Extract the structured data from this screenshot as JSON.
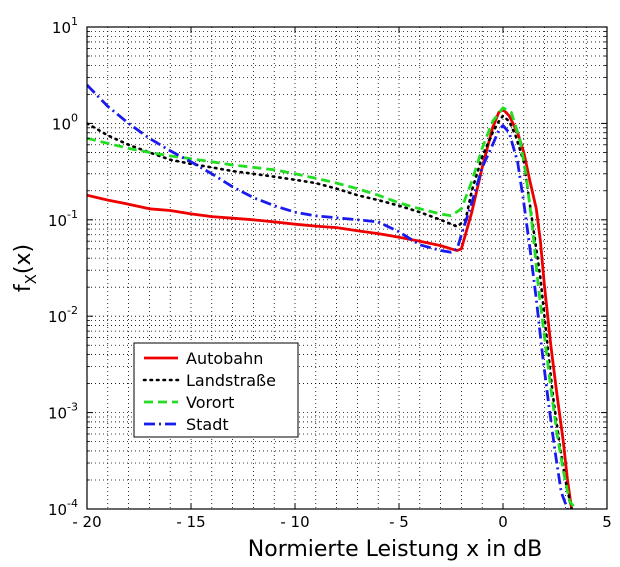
{
  "chart_data": {
    "type": "line",
    "title": "",
    "xlabel": "Normierte Leistung x in dB",
    "ylabel_main": "f",
    "ylabel_sub": "X",
    "ylabel_tail": "(x)",
    "xlim": [
      -20,
      5
    ],
    "ylim": [
      0.0001,
      10
    ],
    "yscale": "log",
    "grid": true,
    "legend_position": "lower-left",
    "x_ticks": [
      -20,
      -15,
      -10,
      -5,
      0,
      5
    ],
    "x_tick_labels": [
      "- 20",
      "- 15",
      "- 10",
      "- 5",
      "0",
      "5"
    ],
    "y_ticks": [
      {
        "value": 10,
        "base": "10",
        "exp": "1"
      },
      {
        "value": 1,
        "base": "10",
        "exp": "0"
      },
      {
        "value": 0.1,
        "base": "10",
        "exp": "-1"
      },
      {
        "value": 0.01,
        "base": "10",
        "exp": "-2"
      },
      {
        "value": 0.001,
        "base": "10",
        "exp": "-3"
      },
      {
        "value": 0.0001,
        "base": "10",
        "exp": "-4"
      }
    ],
    "series": [
      {
        "name": "Autobahn",
        "color": "#ee0000",
        "dash": "solid",
        "x": [
          -20,
          -19,
          -18,
          -17,
          -16,
          -15,
          -14,
          -13,
          -12,
          -11,
          -10,
          -9,
          -8,
          -7,
          -6,
          -5,
          -4,
          -3,
          -2.5,
          -2.2,
          -2,
          -1.5,
          -1,
          -0.5,
          -0.2,
          0,
          0.3,
          0.7,
          1.0,
          1.3,
          1.6,
          1.8,
          2.0,
          2.3,
          2.6,
          2.9,
          3.1,
          3.3
        ],
        "y": [
          0.18,
          0.16,
          0.145,
          0.13,
          0.125,
          0.115,
          0.108,
          0.104,
          0.1,
          0.095,
          0.09,
          0.086,
          0.083,
          0.077,
          0.072,
          0.066,
          0.06,
          0.054,
          0.05,
          0.048,
          0.05,
          0.12,
          0.35,
          0.9,
          1.3,
          1.4,
          1.2,
          0.8,
          0.5,
          0.25,
          0.13,
          0.06,
          0.02,
          0.005,
          0.0015,
          0.0005,
          0.0002,
          0.0001
        ]
      },
      {
        "name": "Landstraße",
        "color": "#000000",
        "dash": "dotted",
        "x": [
          -20,
          -19,
          -18,
          -17,
          -16,
          -15,
          -14,
          -13,
          -12,
          -11,
          -10,
          -9,
          -8,
          -7,
          -6,
          -5,
          -4,
          -3,
          -2.2,
          -1.8,
          -1.5,
          -1,
          -0.5,
          -0.2,
          0,
          0.3,
          0.6,
          1.0,
          1.4,
          1.8,
          2.1,
          2.4,
          2.7,
          3.0,
          3.3
        ],
        "y": [
          1.0,
          0.75,
          0.6,
          0.5,
          0.42,
          0.38,
          0.35,
          0.32,
          0.3,
          0.28,
          0.26,
          0.24,
          0.21,
          0.18,
          0.16,
          0.14,
          0.12,
          0.1,
          0.085,
          0.1,
          0.2,
          0.45,
          0.8,
          1.05,
          1.2,
          1.05,
          0.75,
          0.4,
          0.1,
          0.025,
          0.006,
          0.0015,
          0.0005,
          0.0002,
          0.0001
        ]
      },
      {
        "name": "Vorort",
        "color": "#22dd22",
        "dash": "dashed",
        "x": [
          -20,
          -19,
          -18,
          -17,
          -16,
          -15,
          -14,
          -13,
          -12,
          -11,
          -10,
          -9,
          -8,
          -7,
          -6,
          -5,
          -4,
          -3,
          -2.5,
          -2,
          -1.5,
          -1,
          -0.5,
          0,
          0.4,
          0.8,
          1.1,
          1.4,
          1.7,
          2.0,
          2.3,
          2.6,
          2.9,
          3.2,
          3.5
        ],
        "y": [
          0.7,
          0.62,
          0.55,
          0.5,
          0.46,
          0.43,
          0.4,
          0.37,
          0.35,
          0.33,
          0.3,
          0.27,
          0.24,
          0.21,
          0.18,
          0.15,
          0.13,
          0.115,
          0.11,
          0.13,
          0.25,
          0.55,
          1.05,
          1.45,
          1.3,
          0.7,
          0.3,
          0.09,
          0.02,
          0.006,
          0.0018,
          0.0006,
          0.00025,
          0.00012,
          0.0001
        ]
      },
      {
        "name": "Stadt",
        "color": "#1a1aee",
        "dash": "dashdot",
        "x": [
          -20,
          -19,
          -18,
          -17,
          -16,
          -15,
          -14,
          -13,
          -12,
          -11,
          -10,
          -9,
          -8,
          -7,
          -6,
          -5,
          -4,
          -3,
          -2.5,
          -2.2,
          -2,
          -1.5,
          -1,
          -0.5,
          -0.2,
          0,
          0.3,
          0.7,
          1.0,
          1.3,
          1.6,
          1.9,
          2.2,
          2.5,
          2.8,
          3.1
        ],
        "y": [
          2.5,
          1.5,
          1.0,
          0.7,
          0.52,
          0.4,
          0.3,
          0.22,
          0.17,
          0.14,
          0.12,
          0.11,
          0.105,
          0.1,
          0.095,
          0.075,
          0.055,
          0.048,
          0.046,
          0.05,
          0.07,
          0.15,
          0.35,
          0.6,
          0.85,
          0.95,
          0.8,
          0.4,
          0.15,
          0.05,
          0.015,
          0.004,
          0.0012,
          0.0004,
          0.00015,
          0.0001
        ]
      }
    ]
  }
}
